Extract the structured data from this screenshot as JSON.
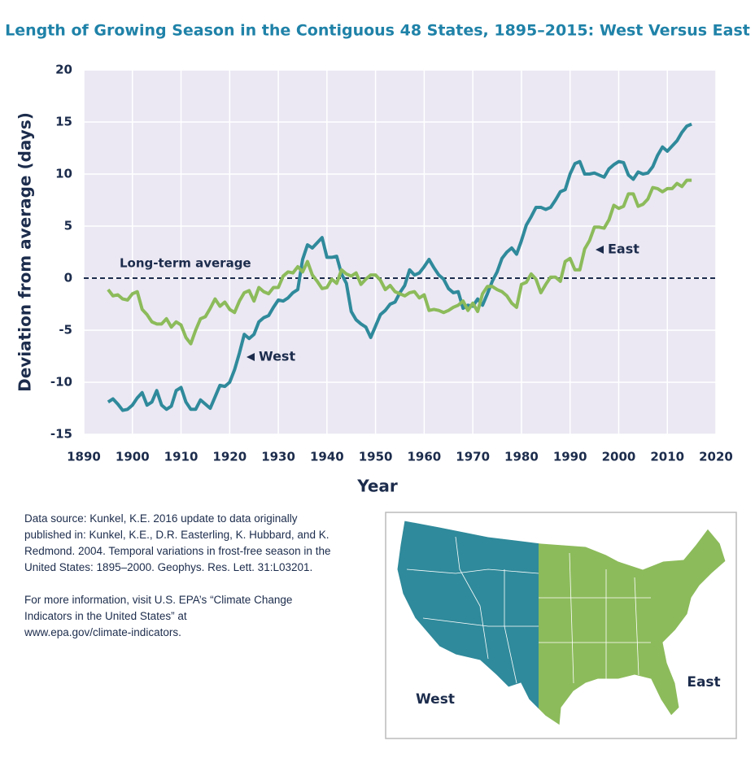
{
  "chart_data": {
    "type": "line",
    "title": "Length of Growing Season in the Contiguous 48 States, 1895–2015: West Versus East",
    "x_label": "Year",
    "y_label": "Deviation from average (days)",
    "xlim": [
      1890,
      2020
    ],
    "xticks": [
      1890,
      1900,
      1910,
      1920,
      1930,
      1940,
      1950,
      1960,
      1970,
      1980,
      1990,
      2000,
      2010,
      2020
    ],
    "ylim": [
      -15,
      20
    ],
    "yticks": [
      -15,
      -10,
      -5,
      0,
      5,
      10,
      15,
      20
    ],
    "grid": true,
    "reference_line": {
      "value": 0,
      "label": "Long-term average"
    },
    "x": [
      1895,
      1896,
      1897,
      1898,
      1899,
      1900,
      1901,
      1902,
      1903,
      1904,
      1905,
      1906,
      1907,
      1908,
      1909,
      1910,
      1911,
      1912,
      1913,
      1914,
      1915,
      1916,
      1917,
      1918,
      1919,
      1920,
      1921,
      1922,
      1923,
      1924,
      1925,
      1926,
      1927,
      1928,
      1929,
      1930,
      1931,
      1932,
      1933,
      1934,
      1935,
      1936,
      1937,
      1938,
      1939,
      1940,
      1941,
      1942,
      1943,
      1944,
      1945,
      1946,
      1947,
      1948,
      1949,
      1950,
      1951,
      1952,
      1953,
      1954,
      1955,
      1956,
      1957,
      1958,
      1959,
      1960,
      1961,
      1962,
      1963,
      1964,
      1965,
      1966,
      1967,
      1968,
      1969,
      1970,
      1971,
      1972,
      1973,
      1974,
      1975,
      1976,
      1977,
      1978,
      1979,
      1980,
      1981,
      1982,
      1983,
      1984,
      1985,
      1986,
      1987,
      1988,
      1989,
      1990,
      1991,
      1992,
      1993,
      1994,
      1995,
      1996,
      1997,
      1998,
      1999,
      2000,
      2001,
      2002,
      2003,
      2004,
      2005,
      2006,
      2007,
      2008,
      2009,
      2010,
      2011,
      2012,
      2013,
      2014,
      2015
    ],
    "series": [
      {
        "name": "West",
        "color": "#2f8a9b",
        "values": [
          -11.9,
          -11.6,
          -12.1,
          -12.7,
          -12.6,
          -12.2,
          -11.5,
          -11.0,
          -12.2,
          -11.9,
          -10.8,
          -12.2,
          -12.6,
          -12.3,
          -10.8,
          -10.5,
          -11.9,
          -12.6,
          -12.6,
          -11.7,
          -12.1,
          -12.5,
          -11.4,
          -10.3,
          -10.4,
          -10.0,
          -8.8,
          -7.2,
          -5.4,
          -5.8,
          -5.4,
          -4.2,
          -3.8,
          -3.6,
          -2.8,
          -2.1,
          -2.2,
          -1.9,
          -1.4,
          -1.1,
          1.8,
          3.2,
          2.9,
          3.4,
          3.9,
          2.0,
          2.0,
          2.1,
          0.4,
          -0.5,
          -3.2,
          -4.0,
          -4.4,
          -4.7,
          -5.7,
          -4.6,
          -3.5,
          -3.1,
          -2.5,
          -2.3,
          -1.4,
          -0.7,
          0.8,
          0.3,
          0.5,
          1.1,
          1.8,
          1.0,
          0.3,
          -0.1,
          -1.0,
          -1.4,
          -1.3,
          -2.9,
          -2.6,
          -2.7,
          -2.0,
          -2.6,
          -1.5,
          -0.3,
          0.6,
          1.9,
          2.5,
          2.9,
          2.3,
          3.6,
          5.1,
          5.9,
          6.8,
          6.8,
          6.6,
          6.8,
          7.5,
          8.3,
          8.5,
          10.0,
          11.0,
          11.2,
          10.0,
          10.0,
          10.1,
          9.9,
          9.7,
          10.5,
          10.9,
          11.2,
          11.1,
          9.9,
          9.5,
          10.2,
          10.0,
          10.1,
          10.7,
          11.8,
          12.6,
          12.2,
          12.7,
          13.2,
          14.0,
          14.6,
          14.8
        ]
      },
      {
        "name": "East",
        "color": "#8cbb5b",
        "values": [
          -1.1,
          -1.7,
          -1.6,
          -2.0,
          -2.1,
          -1.5,
          -1.3,
          -3.0,
          -3.5,
          -4.2,
          -4.4,
          -4.4,
          -3.9,
          -4.7,
          -4.2,
          -4.5,
          -5.7,
          -6.3,
          -5.0,
          -3.9,
          -3.7,
          -2.9,
          -2.0,
          -2.7,
          -2.3,
          -3.0,
          -3.3,
          -2.2,
          -1.4,
          -1.2,
          -2.2,
          -0.9,
          -1.3,
          -1.5,
          -0.9,
          -0.9,
          0.2,
          0.6,
          0.5,
          1.1,
          0.6,
          1.6,
          0.3,
          -0.3,
          -1.0,
          -0.9,
          -0.1,
          -0.5,
          0.8,
          0.4,
          0.2,
          0.5,
          -0.6,
          -0.1,
          0.3,
          0.3,
          -0.2,
          -1.1,
          -0.7,
          -1.3,
          -1.5,
          -1.7,
          -1.4,
          -1.3,
          -1.9,
          -1.6,
          -3.1,
          -3.0,
          -3.1,
          -3.3,
          -3.1,
          -2.8,
          -2.6,
          -2.2,
          -3.1,
          -2.4,
          -3.2,
          -1.5,
          -0.8,
          -0.8,
          -1.1,
          -1.3,
          -1.7,
          -2.4,
          -2.8,
          -0.6,
          -0.4,
          0.4,
          -0.1,
          -1.4,
          -0.6,
          0.1,
          0.1,
          -0.3,
          1.6,
          1.9,
          0.8,
          0.8,
          2.8,
          3.6,
          4.9,
          4.9,
          4.8,
          5.6,
          7.0,
          6.7,
          6.9,
          8.1,
          8.1,
          6.9,
          7.1,
          7.6,
          8.7,
          8.6,
          8.3,
          8.6,
          8.6,
          9.1,
          8.8,
          9.4,
          9.4
        ]
      }
    ]
  },
  "notes": {
    "source_lines": [
      "Data source: Kunkel, K.E. 2016 update to data originally",
      "published in: Kunkel, K.E., D.R. Easterling, K. Hubbard, and K.",
      "Redmond. 2004. Temporal variations in frost-free season in the",
      "United States: 1895–2000. Geophys. Res. Lett. 31:L03201."
    ],
    "more_info_lines": [
      "For more information, visit U.S. EPA’s “Climate Change",
      "Indicators in the United States” at",
      "www.epa.gov/climate-indicators."
    ]
  }
}
